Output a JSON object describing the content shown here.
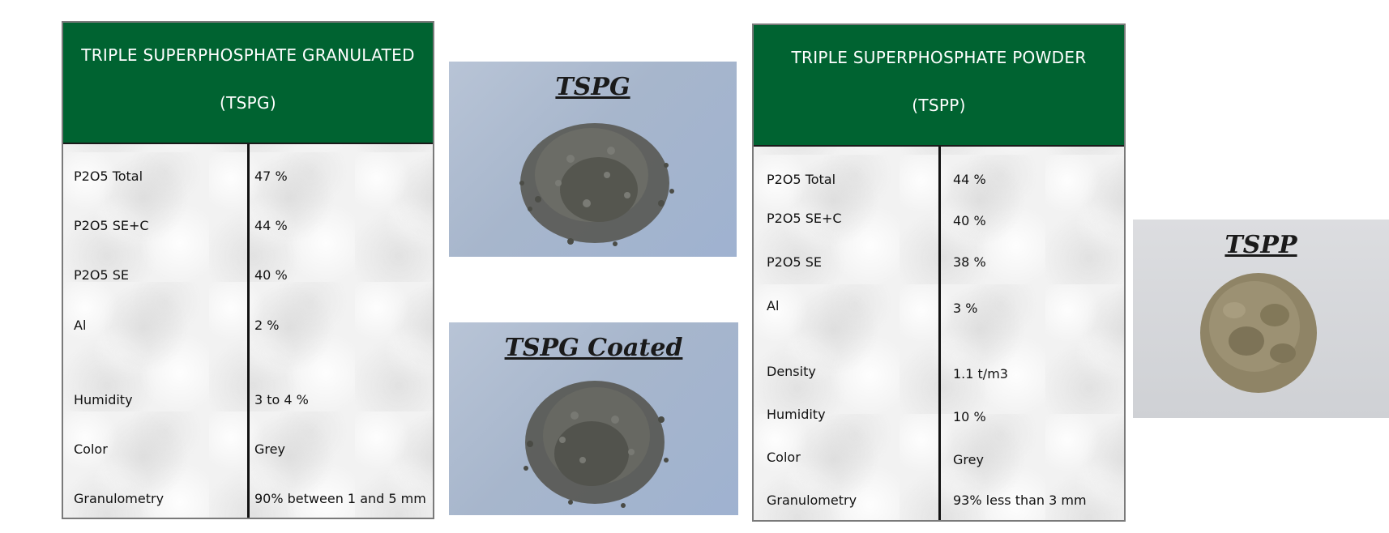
{
  "granulated": {
    "header_line1": "TRIPLE SUPERPHOSPHATE GRANULATED",
    "header_line2": "(TSPG)",
    "rows": [
      {
        "label": "P2O5 Total",
        "value": "47 %"
      },
      {
        "label": "P2O5 SE+C",
        "value": "44 %"
      },
      {
        "label": "P2O5 SE",
        "value": "40 %"
      },
      {
        "label": "Al",
        "value": "2 %"
      },
      {
        "label": "Humidity",
        "value": "3 to 4 %"
      },
      {
        "label": "Color",
        "value": "Grey"
      },
      {
        "label": "Granulometry",
        "value": "90% between 1 and 5 mm"
      }
    ]
  },
  "powder": {
    "header_line1": "TRIPLE SUPERPHOSPHATE POWDER",
    "header_line2": "(TSPP)",
    "rows": [
      {
        "label": "P2O5 Total",
        "value": "44 %"
      },
      {
        "label": "P2O5 SE+C",
        "value": "40 %"
      },
      {
        "label": "P2O5 SE",
        "value": "38 %"
      },
      {
        "label": "Al",
        "value": "3 %"
      },
      {
        "label": "Density",
        "value": "1.1 t/m3"
      },
      {
        "label": "Humidity",
        "value": "10 %"
      },
      {
        "label": "Color",
        "value": "Grey"
      },
      {
        "label": "Granulometry",
        "value": "93% less than 3 mm"
      }
    ]
  },
  "photos": {
    "tspg_title": "TSPG",
    "tspg_coated_title": "TSPG Coated",
    "tspp_title": "TSPP"
  },
  "colors": {
    "header_green": "#006331",
    "header_text": "#ffffff",
    "granule_grey": "#5c5d58",
    "powder_tan": "#8f8466"
  }
}
